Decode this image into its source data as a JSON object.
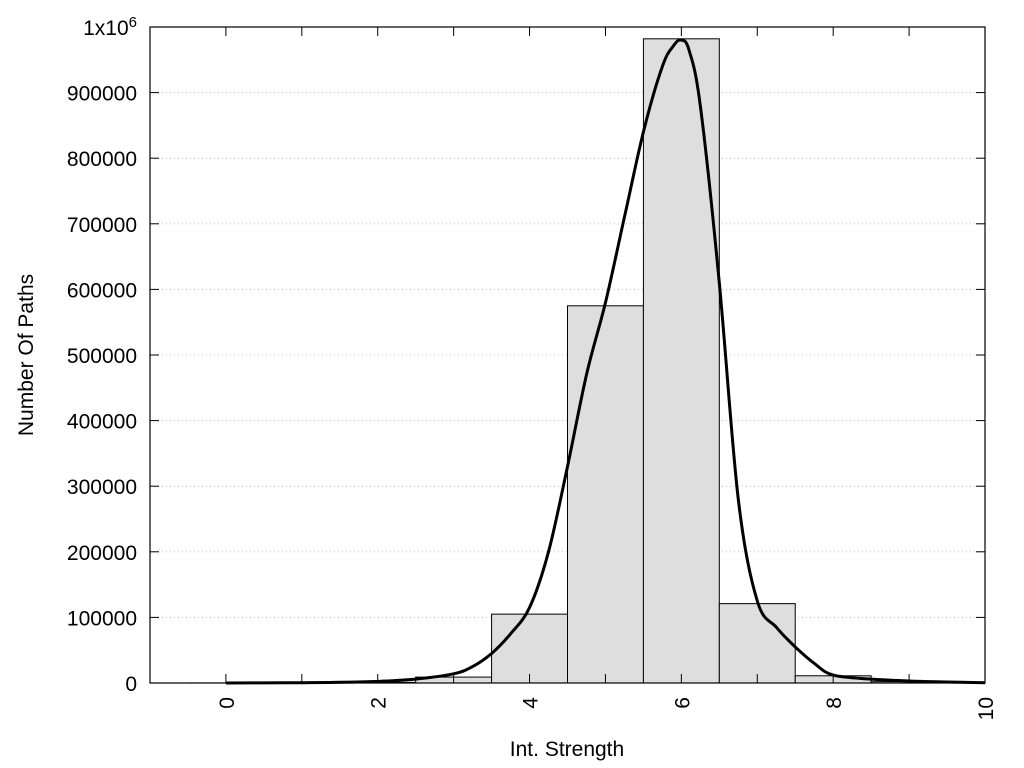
{
  "chart_data": {
    "type": "bar",
    "title": "",
    "xlabel": "Int. Strength",
    "ylabel": "Number Of Paths",
    "xlim": [
      -1,
      10
    ],
    "ylim": [
      0,
      1000000
    ],
    "grid": true,
    "x_ticks": [
      {
        "value": 0,
        "label": "0"
      },
      {
        "value": 2,
        "label": "2"
      },
      {
        "value": 4,
        "label": "4"
      },
      {
        "value": 6,
        "label": "6"
      },
      {
        "value": 8,
        "label": "8"
      },
      {
        "value": 10,
        "label": "10"
      }
    ],
    "y_ticks": [
      {
        "value": 0,
        "label": "0"
      },
      {
        "value": 100000,
        "label": "100000"
      },
      {
        "value": 200000,
        "label": "200000"
      },
      {
        "value": 300000,
        "label": "300000"
      },
      {
        "value": 400000,
        "label": "400000"
      },
      {
        "value": 500000,
        "label": "500000"
      },
      {
        "value": 600000,
        "label": "600000"
      },
      {
        "value": 700000,
        "label": "700000"
      },
      {
        "value": 800000,
        "label": "800000"
      },
      {
        "value": 900000,
        "label": "900000"
      }
    ],
    "y_top_label": {
      "base": "1x10",
      "exponent": "6"
    },
    "bars": {
      "x": [
        0,
        1,
        2,
        3,
        4,
        5,
        6,
        7,
        8,
        9
      ],
      "values": [
        100,
        200,
        1000,
        9000,
        105000,
        575000,
        982000,
        121000,
        11000,
        2000
      ]
    },
    "curve": {
      "x": [
        0,
        0.5,
        1,
        1.5,
        2,
        2.5,
        3,
        3.25,
        3.5,
        3.75,
        4,
        4.25,
        4.5,
        4.75,
        5,
        5.25,
        5.5,
        5.75,
        5.9,
        6,
        6.1,
        6.25,
        6.5,
        6.75,
        7,
        7.25,
        7.5,
        7.75,
        8,
        8.5,
        9,
        9.5,
        10
      ],
      "y": [
        0,
        200,
        500,
        1000,
        2500,
        6000,
        14000,
        25000,
        45000,
        75000,
        115000,
        200000,
        330000,
        470000,
        580000,
        710000,
        840000,
        940000,
        972000,
        980000,
        965000,
        880000,
        610000,
        280000,
        125000,
        85000,
        55000,
        30000,
        12000,
        6000,
        3000,
        1500,
        500
      ]
    }
  }
}
